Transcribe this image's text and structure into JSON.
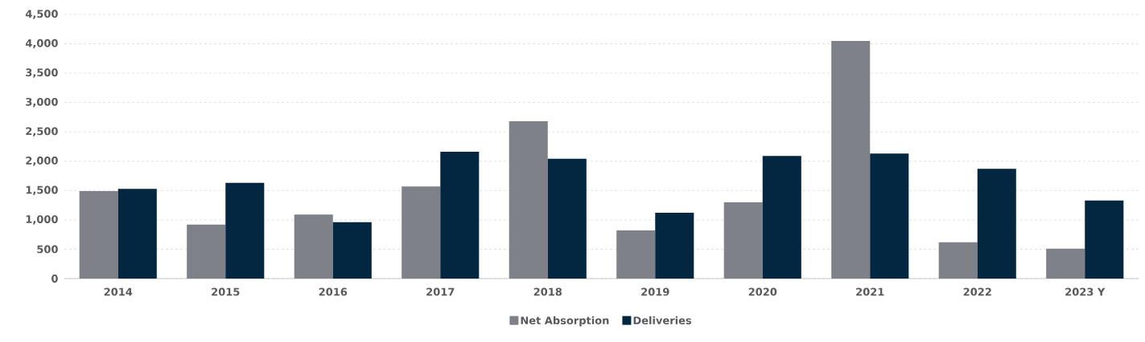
{
  "chart_data": {
    "type": "bar",
    "categories": [
      "2014",
      "2015",
      "2016",
      "2017",
      "2018",
      "2019",
      "2020",
      "2021",
      "2022",
      "2023 Y"
    ],
    "series": [
      {
        "name": "Net Absorption",
        "color": "#7f8189",
        "values": [
          1490,
          920,
          1090,
          1570,
          2680,
          820,
          1300,
          4050,
          620,
          510
        ]
      },
      {
        "name": "Deliveries",
        "color": "#032741",
        "values": [
          1530,
          1630,
          960,
          2160,
          2040,
          1120,
          2090,
          2130,
          1870,
          1330
        ]
      }
    ],
    "ylim": [
      0,
      4500
    ],
    "yticks": [
      0,
      500,
      {
        "value": 1000,
        "label": "1,000"
      },
      {
        "value": 1500,
        "label": "1,500"
      },
      {
        "value": 2000,
        "label": "2,000"
      },
      {
        "value": 2500,
        "label": "2,500"
      },
      {
        "value": 3000,
        "label": "3,000"
      },
      {
        "value": 3500,
        "label": "3,500"
      },
      {
        "value": 4000,
        "label": "4,000"
      },
      {
        "value": 4500,
        "label": "4,500"
      }
    ],
    "grid": "y",
    "legend": "bottom"
  }
}
